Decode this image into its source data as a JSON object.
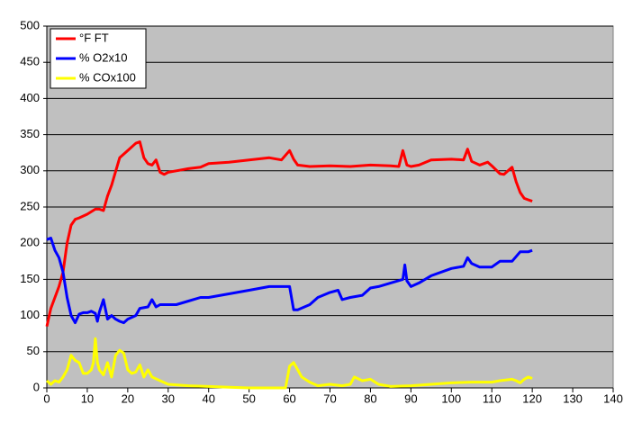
{
  "chart_data": {
    "type": "line",
    "xlim": [
      0,
      140
    ],
    "xticks": [
      0,
      10,
      20,
      30,
      40,
      50,
      60,
      70,
      80,
      90,
      100,
      110,
      120,
      130,
      140
    ],
    "ylim": [
      0,
      500
    ],
    "yticks": [
      0,
      50,
      100,
      150,
      200,
      250,
      300,
      350,
      400,
      450,
      500
    ],
    "grid": true,
    "background": "#c0c0c0",
    "legend": "upper left",
    "series": [
      {
        "name": "°F FT",
        "color": "#ff0000",
        "x": [
          0,
          1,
          3,
          4,
          5,
          6,
          7,
          8,
          10,
          12,
          13,
          14,
          15,
          16,
          18,
          20,
          22,
          23,
          24,
          25,
          26,
          27,
          28,
          29,
          30,
          32,
          35,
          38,
          40,
          45,
          50,
          55,
          58,
          60,
          61,
          62,
          65,
          70,
          75,
          80,
          85,
          87,
          88,
          89,
          90,
          92,
          95,
          100,
          103,
          104,
          105,
          107,
          109,
          110,
          112,
          113,
          115,
          116,
          117,
          118,
          119,
          120
        ],
        "values": [
          85,
          110,
          140,
          160,
          200,
          225,
          233,
          235,
          240,
          247,
          247,
          245,
          265,
          280,
          318,
          328,
          338,
          340,
          318,
          310,
          308,
          315,
          298,
          295,
          298,
          300,
          303,
          305,
          310,
          312,
          315,
          318,
          315,
          328,
          316,
          308,
          306,
          307,
          306,
          308,
          307,
          306,
          328,
          308,
          306,
          308,
          315,
          316,
          315,
          330,
          313,
          308,
          312,
          307,
          296,
          295,
          305,
          285,
          270,
          262,
          260,
          258
        ]
      },
      {
        "name": "% O2x10",
        "color": "#0000ff",
        "x": [
          0,
          1,
          2,
          3,
          4,
          5,
          6,
          7,
          8,
          9,
          10,
          11,
          12,
          12.5,
          13,
          14,
          15,
          16,
          17,
          18,
          19,
          20,
          22,
          23,
          25,
          26,
          27,
          28,
          30,
          32,
          35,
          38,
          40,
          45,
          50,
          55,
          58,
          60,
          61,
          62,
          65,
          67,
          70,
          72,
          73,
          75,
          78,
          80,
          82,
          85,
          88,
          88.5,
          89,
          90,
          92,
          95,
          100,
          103,
          104,
          105,
          107,
          110,
          112,
          115,
          117,
          119,
          120
        ],
        "values": [
          205,
          207,
          190,
          180,
          160,
          125,
          100,
          90,
          102,
          104,
          104,
          106,
          103,
          92,
          105,
          122,
          95,
          100,
          95,
          92,
          90,
          95,
          100,
          110,
          112,
          122,
          112,
          115,
          115,
          115,
          120,
          125,
          125,
          130,
          135,
          140,
          140,
          140,
          108,
          108,
          115,
          125,
          132,
          135,
          122,
          125,
          128,
          138,
          140,
          145,
          150,
          170,
          148,
          140,
          145,
          155,
          165,
          168,
          180,
          172,
          167,
          167,
          175,
          175,
          188,
          188,
          190
        ]
      },
      {
        "name": "% COx100",
        "color": "#ffff00",
        "x": [
          0,
          1,
          2,
          3,
          4,
          5,
          6,
          7,
          8,
          9,
          10,
          11,
          11.5,
          12,
          12.5,
          13,
          14,
          15,
          16,
          17,
          18,
          19,
          20,
          21,
          22,
          23,
          24,
          25,
          26,
          28,
          30,
          35,
          40,
          45,
          50,
          55,
          59,
          60,
          61,
          62,
          63,
          65,
          67,
          70,
          73,
          75,
          76,
          78,
          80,
          82,
          85,
          90,
          95,
          100,
          105,
          110,
          112,
          115,
          116,
          117,
          118,
          119,
          120
        ],
        "values": [
          10,
          5,
          10,
          8,
          15,
          25,
          45,
          38,
          35,
          20,
          20,
          25,
          35,
          68,
          35,
          25,
          18,
          35,
          15,
          45,
          52,
          48,
          25,
          20,
          22,
          32,
          15,
          25,
          15,
          10,
          5,
          3,
          2,
          1,
          0,
          0,
          0,
          30,
          35,
          25,
          15,
          8,
          3,
          5,
          3,
          5,
          15,
          10,
          12,
          5,
          2,
          3,
          5,
          7,
          8,
          8,
          10,
          12,
          10,
          7,
          12,
          15,
          13
        ]
      }
    ]
  }
}
